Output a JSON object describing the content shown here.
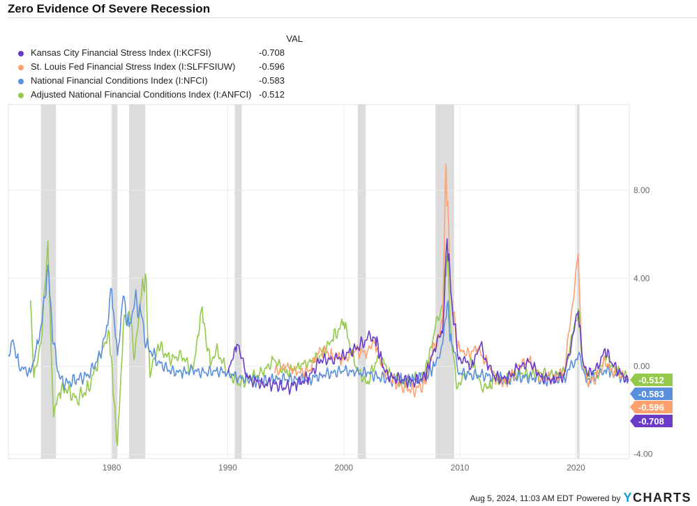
{
  "title": "Zero Evidence Of Severe Recession",
  "footer": {
    "timestamp": "Aug 5, 2024, 11:03 AM EDT",
    "powered_by": "Powered by",
    "logo_y": "Y",
    "logo_rest": "CHARTS"
  },
  "legend": {
    "header": "VAL"
  },
  "chart_data": {
    "type": "line",
    "title": "Zero Evidence Of Severe Recession",
    "xlim": [
      1971.1,
      2024.6
    ],
    "ylim": [
      -4.2,
      11.9
    ],
    "y_axis_position": "right",
    "x_ticks": [
      "1980",
      "1990",
      "2000",
      "2010",
      "2020"
    ],
    "x_tick_values": [
      1980,
      1990,
      2000,
      2010,
      2020
    ],
    "y_ticks": [
      "8.00",
      "4.00",
      "0.00",
      "-4.00"
    ],
    "y_tick_values": [
      8,
      4,
      0,
      -4
    ],
    "grid": true,
    "legend_placement": "top-left",
    "recessions": [
      [
        1973.9,
        1975.2
      ],
      [
        1980.0,
        1980.5
      ],
      [
        1981.5,
        1982.9
      ],
      [
        1990.6,
        1991.2
      ],
      [
        2001.2,
        2001.9
      ],
      [
        2007.9,
        2009.5
      ],
      [
        2020.1,
        2020.3
      ]
    ],
    "series": [
      {
        "name": "Kansas City Financial Stress Index (I:KCFSI)",
        "value": "-0.708",
        "color": "#6a3bc7",
        "points": [
          [
            1990,
            -0.3
          ],
          [
            1990.8,
            1.0
          ],
          [
            1991.5,
            -0.3
          ],
          [
            1992,
            -0.6
          ],
          [
            1993,
            -0.8
          ],
          [
            1994,
            -0.8
          ],
          [
            1995,
            -1.0
          ],
          [
            1996,
            -0.8
          ],
          [
            1997,
            -0.5
          ],
          [
            1998,
            0.3
          ],
          [
            1999,
            0.3
          ],
          [
            2000,
            0.5
          ],
          [
            2001,
            0.8
          ],
          [
            2002,
            1.2
          ],
          [
            2002.7,
            1.3
          ],
          [
            2003.5,
            -0.2
          ],
          [
            2004,
            -0.5
          ],
          [
            2005,
            -0.6
          ],
          [
            2006,
            -0.7
          ],
          [
            2007,
            -0.5
          ],
          [
            2007.8,
            0.8
          ],
          [
            2008.5,
            1.5
          ],
          [
            2008.9,
            5.8
          ],
          [
            2009.3,
            3.0
          ],
          [
            2009.8,
            0.5
          ],
          [
            2010.5,
            0.2
          ],
          [
            2011,
            0.0
          ],
          [
            2011.8,
            1.0
          ],
          [
            2012.5,
            0.0
          ],
          [
            2013,
            -0.5
          ],
          [
            2014,
            -0.6
          ],
          [
            2015,
            -0.1
          ],
          [
            2016,
            0.2
          ],
          [
            2017,
            -0.5
          ],
          [
            2018,
            -0.6
          ],
          [
            2019,
            -0.4
          ],
          [
            2020.2,
            2.5
          ],
          [
            2020.6,
            0.2
          ],
          [
            2021,
            -0.4
          ],
          [
            2022,
            0.0
          ],
          [
            2022.5,
            0.8
          ],
          [
            2023,
            0.2
          ],
          [
            2024.5,
            -0.708
          ]
        ]
      },
      {
        "name": "St. Louis Fed Financial Stress Index (I:SLFFSIUW)",
        "value": "-0.596",
        "color": "#ffa06e",
        "points": [
          [
            1994,
            -0.3
          ],
          [
            1995,
            0.0
          ],
          [
            1996,
            -0.3
          ],
          [
            1997,
            -0.2
          ],
          [
            1998,
            0.8
          ],
          [
            1999,
            0.5
          ],
          [
            2000,
            0.3
          ],
          [
            2001,
            0.7
          ],
          [
            2002,
            0.6
          ],
          [
            2002.7,
            1.0
          ],
          [
            2003.5,
            -0.3
          ],
          [
            2004,
            -0.6
          ],
          [
            2005,
            -0.9
          ],
          [
            2006,
            -1.1
          ],
          [
            2007,
            -0.8
          ],
          [
            2007.8,
            1.0
          ],
          [
            2008.5,
            2.0
          ],
          [
            2008.8,
            9.2
          ],
          [
            2009.2,
            3.5
          ],
          [
            2009.7,
            1.0
          ],
          [
            2010.5,
            0.5
          ],
          [
            2011.5,
            0.8
          ],
          [
            2012.5,
            0.0
          ],
          [
            2013,
            -0.5
          ],
          [
            2014,
            -0.8
          ],
          [
            2015,
            0.0
          ],
          [
            2016,
            0.3
          ],
          [
            2017,
            -0.6
          ],
          [
            2018,
            -0.5
          ],
          [
            2019,
            -0.3
          ],
          [
            2020.2,
            5.1
          ],
          [
            2020.5,
            0.5
          ],
          [
            2021,
            -0.8
          ],
          [
            2022,
            -0.4
          ],
          [
            2022.5,
            0.3
          ],
          [
            2023,
            -0.2
          ],
          [
            2024.5,
            -0.596
          ]
        ]
      },
      {
        "name": "National Financial Conditions Index (I:NFCI)",
        "value": "-0.583",
        "color": "#5a8fdb",
        "points": [
          [
            1971.1,
            0.5
          ],
          [
            1971.5,
            1.2
          ],
          [
            1972,
            0.0
          ],
          [
            1973,
            -0.3
          ],
          [
            1973.5,
            0.8
          ],
          [
            1974,
            2.0
          ],
          [
            1974.5,
            4.6
          ],
          [
            1975,
            1.0
          ],
          [
            1975.5,
            -0.5
          ],
          [
            1976,
            -0.8
          ],
          [
            1977,
            -0.6
          ],
          [
            1978,
            -0.4
          ],
          [
            1979,
            0.5
          ],
          [
            1979.5,
            1.5
          ],
          [
            1980,
            3.5
          ],
          [
            1980.5,
            0.5
          ],
          [
            1981,
            3.2
          ],
          [
            1981.5,
            1.8
          ],
          [
            1982,
            3.0
          ],
          [
            1982.5,
            2.5
          ],
          [
            1983,
            1.0
          ],
          [
            1984,
            0.2
          ],
          [
            1985,
            -0.2
          ],
          [
            1986,
            -0.3
          ],
          [
            1987,
            -0.2
          ],
          [
            1988,
            -0.3
          ],
          [
            1989,
            -0.2
          ],
          [
            1990,
            -0.3
          ],
          [
            1991,
            -0.5
          ],
          [
            1992,
            -0.6
          ],
          [
            1993,
            -0.7
          ],
          [
            1994,
            -0.6
          ],
          [
            1995,
            -0.6
          ],
          [
            1996,
            -0.6
          ],
          [
            1997,
            -0.6
          ],
          [
            1998,
            -0.4
          ],
          [
            1999,
            -0.3
          ],
          [
            2000,
            -0.2
          ],
          [
            2001,
            -0.3
          ],
          [
            2002,
            -0.3
          ],
          [
            2003,
            -0.5
          ],
          [
            2004,
            -0.6
          ],
          [
            2005,
            -0.6
          ],
          [
            2006,
            -0.6
          ],
          [
            2007,
            -0.5
          ],
          [
            2007.8,
            0.0
          ],
          [
            2008.5,
            1.0
          ],
          [
            2008.9,
            2.8
          ],
          [
            2009.3,
            1.0
          ],
          [
            2010,
            -0.3
          ],
          [
            2011,
            -0.4
          ],
          [
            2012,
            -0.4
          ],
          [
            2013,
            -0.5
          ],
          [
            2014,
            -0.6
          ],
          [
            2015,
            -0.5
          ],
          [
            2016,
            -0.5
          ],
          [
            2017,
            -0.6
          ],
          [
            2018,
            -0.6
          ],
          [
            2019,
            -0.5
          ],
          [
            2020.2,
            0.5
          ],
          [
            2020.8,
            -0.4
          ],
          [
            2021,
            -0.6
          ],
          [
            2022,
            -0.4
          ],
          [
            2022.7,
            -0.1
          ],
          [
            2023,
            -0.3
          ],
          [
            2024.5,
            -0.583
          ]
        ]
      },
      {
        "name": "Adjusted National Financial Conditions Index (I:ANFCI)",
        "value": "-0.512",
        "color": "#94c94b",
        "points": [
          [
            1973,
            3.0
          ],
          [
            1973.3,
            -0.5
          ],
          [
            1974,
            1.5
          ],
          [
            1974.5,
            5.7
          ],
          [
            1974.8,
            0.5
          ],
          [
            1975,
            -2.3
          ],
          [
            1975.5,
            -1.2
          ],
          [
            1976,
            -1.0
          ],
          [
            1977,
            -1.5
          ],
          [
            1978,
            -1.0
          ],
          [
            1979,
            0.5
          ],
          [
            1979.8,
            1.5
          ],
          [
            1980.2,
            -1.6
          ],
          [
            1980.5,
            -3.6
          ],
          [
            1981,
            1.8
          ],
          [
            1981.5,
            2.5
          ],
          [
            1982,
            0.5
          ],
          [
            1982.5,
            3.0
          ],
          [
            1982.9,
            4.2
          ],
          [
            1983.3,
            -0.5
          ],
          [
            1984,
            1.0
          ],
          [
            1985,
            0.3
          ],
          [
            1986,
            0.5
          ],
          [
            1987,
            -0.2
          ],
          [
            1987.8,
            2.7
          ],
          [
            1988.5,
            0.0
          ],
          [
            1989,
            0.8
          ],
          [
            1990,
            -0.3
          ],
          [
            1991,
            -0.8
          ],
          [
            1992,
            -0.5
          ],
          [
            1993,
            -0.3
          ],
          [
            1994,
            0.3
          ],
          [
            1995,
            -0.3
          ],
          [
            1996,
            0.0
          ],
          [
            1997,
            0.2
          ],
          [
            1998,
            0.5
          ],
          [
            1999,
            1.2
          ],
          [
            2000,
            2.0
          ],
          [
            2000.5,
            1.0
          ],
          [
            2001,
            0.0
          ],
          [
            2002,
            -0.8
          ],
          [
            2003,
            0.5
          ],
          [
            2004,
            -0.3
          ],
          [
            2005,
            -0.8
          ],
          [
            2006,
            -0.6
          ],
          [
            2007,
            -0.3
          ],
          [
            2007.8,
            1.5
          ],
          [
            2008.5,
            2.8
          ],
          [
            2008.9,
            5.0
          ],
          [
            2009.3,
            1.0
          ],
          [
            2009.8,
            -1.0
          ],
          [
            2010.5,
            -0.5
          ],
          [
            2011,
            0.3
          ],
          [
            2011.8,
            -0.8
          ],
          [
            2012.5,
            -1.0
          ],
          [
            2013,
            -0.5
          ],
          [
            2014,
            -0.6
          ],
          [
            2015,
            -0.3
          ],
          [
            2016,
            -0.4
          ],
          [
            2017,
            -0.3
          ],
          [
            2018,
            -0.4
          ],
          [
            2019,
            -0.3
          ],
          [
            2020.2,
            2.6
          ],
          [
            2020.6,
            0.0
          ],
          [
            2021,
            -0.5
          ],
          [
            2022,
            -0.3
          ],
          [
            2022.7,
            0.5
          ],
          [
            2023,
            0.0
          ],
          [
            2024.5,
            -0.512
          ]
        ]
      }
    ]
  }
}
